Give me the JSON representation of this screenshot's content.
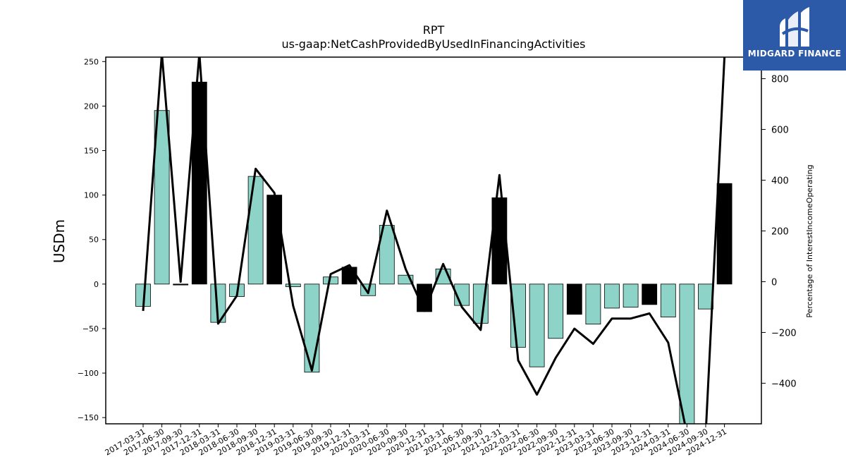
{
  "logo": {
    "name": "MIDGARD FINANCE"
  },
  "chart_data": {
    "type": "bar",
    "title": "RPT",
    "subtitle": "us-gaap:NetCashProvidedByUsedInFinancingActivities",
    "ylabel": "USDm",
    "y2label": "Percentage of InterestIncomeOperating",
    "ylim": [
      -157,
      255
    ],
    "y2lim": [
      -560,
      885
    ],
    "yticks": [
      -150,
      -100,
      -50,
      0,
      50,
      100,
      150,
      200,
      250
    ],
    "y2ticks": [
      -400,
      -200,
      0,
      200,
      400,
      600,
      800
    ],
    "categories": [
      "2017-03-31",
      "2017-06-30",
      "2017-09-30",
      "2017-12-31",
      "2018-03-31",
      "2018-06-30",
      "2018-09-30",
      "2018-12-31",
      "2019-03-31",
      "2019-06-30",
      "2019-09-30",
      "2019-12-31",
      "2020-03-31",
      "2020-06-30",
      "2020-09-30",
      "2020-12-31",
      "2021-03-31",
      "2021-06-30",
      "2021-09-30",
      "2021-12-31",
      "2022-03-31",
      "2022-06-30",
      "2022-09-30",
      "2022-12-31",
      "2023-03-31",
      "2023-06-30",
      "2023-09-30",
      "2023-12-31",
      "2024-03-31",
      "2024-06-30",
      "2024-09-30",
      "2024-12-31"
    ],
    "series": [
      {
        "type": "bar",
        "values": [
          -25,
          195,
          -1,
          227,
          -43,
          -14,
          121,
          100,
          -3,
          -99,
          8,
          19,
          -13,
          66,
          10,
          -31,
          17,
          -24,
          -44,
          97,
          -71,
          -93,
          -61,
          -34,
          -45,
          -27,
          -26,
          -23,
          -37,
          -157,
          -28,
          113
        ],
        "bar_colors": [
          "#8dd3c7",
          "#8dd3c7",
          "#000000",
          "#000000",
          "#8dd3c7",
          "#8dd3c7",
          "#8dd3c7",
          "#000000",
          "#8dd3c7",
          "#8dd3c7",
          "#8dd3c7",
          "#000000",
          "#8dd3c7",
          "#8dd3c7",
          "#8dd3c7",
          "#000000",
          "#8dd3c7",
          "#8dd3c7",
          "#8dd3c7",
          "#000000",
          "#8dd3c7",
          "#8dd3c7",
          "#8dd3c7",
          "#000000",
          "#8dd3c7",
          "#8dd3c7",
          "#8dd3c7",
          "#000000",
          "#8dd3c7",
          "#8dd3c7",
          "#8dd3c7",
          "#000000"
        ]
      },
      {
        "type": "line",
        "axis": "secondary",
        "color": "#000000",
        "values": [
          -115,
          900,
          0,
          900,
          -165,
          -55,
          445,
          350,
          -95,
          -350,
          30,
          65,
          -45,
          280,
          50,
          -115,
          70,
          -100,
          -190,
          420,
          -310,
          -445,
          -300,
          -185,
          -245,
          -145,
          -145,
          -125,
          -240,
          -600,
          -600,
          885
        ]
      }
    ],
    "grid": false
  }
}
